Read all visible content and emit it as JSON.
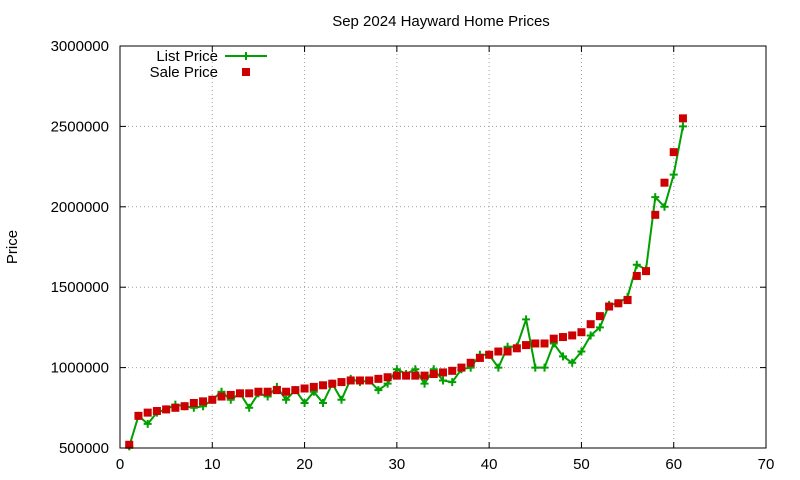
{
  "chart_data": {
    "type": "line",
    "title": "Sep 2024 Hayward Home Prices",
    "xlabel": "",
    "ylabel": "Price",
    "xlim": [
      0,
      70
    ],
    "ylim": [
      500000,
      3000000
    ],
    "x_ticks": [
      0,
      10,
      20,
      30,
      40,
      50,
      60,
      70
    ],
    "y_ticks": [
      500000,
      1000000,
      1500000,
      2000000,
      2500000,
      3000000
    ],
    "grid": true,
    "legend_position": "top-left",
    "series": [
      {
        "name": "List Price",
        "color": "#00a000",
        "marker": "plus",
        "line": true,
        "points": [
          [
            1,
            510000
          ],
          [
            2,
            700000
          ],
          [
            3,
            650000
          ],
          [
            4,
            720000
          ],
          [
            5,
            740000
          ],
          [
            6,
            770000
          ],
          [
            7,
            760000
          ],
          [
            8,
            750000
          ],
          [
            9,
            760000
          ],
          [
            10,
            800000
          ],
          [
            11,
            850000
          ],
          [
            12,
            800000
          ],
          [
            13,
            840000
          ],
          [
            14,
            750000
          ],
          [
            15,
            840000
          ],
          [
            16,
            820000
          ],
          [
            17,
            880000
          ],
          [
            18,
            800000
          ],
          [
            19,
            860000
          ],
          [
            20,
            780000
          ],
          [
            21,
            850000
          ],
          [
            22,
            780000
          ],
          [
            23,
            900000
          ],
          [
            24,
            800000
          ],
          [
            25,
            930000
          ],
          [
            26,
            910000
          ],
          [
            27,
            920000
          ],
          [
            28,
            860000
          ],
          [
            29,
            900000
          ],
          [
            30,
            990000
          ],
          [
            31,
            960000
          ],
          [
            32,
            990000
          ],
          [
            33,
            900000
          ],
          [
            34,
            990000
          ],
          [
            35,
            920000
          ],
          [
            36,
            910000
          ],
          [
            37,
            990000
          ],
          [
            38,
            1000000
          ],
          [
            39,
            1080000
          ],
          [
            40,
            1080000
          ],
          [
            41,
            1000000
          ],
          [
            42,
            1130000
          ],
          [
            43,
            1130000
          ],
          [
            44,
            1300000
          ],
          [
            45,
            1000000
          ],
          [
            46,
            1000000
          ],
          [
            47,
            1150000
          ],
          [
            48,
            1070000
          ],
          [
            49,
            1030000
          ],
          [
            50,
            1100000
          ],
          [
            51,
            1200000
          ],
          [
            52,
            1250000
          ],
          [
            53,
            1390000
          ],
          [
            54,
            1400000
          ],
          [
            55,
            1440000
          ],
          [
            56,
            1640000
          ],
          [
            57,
            1610000
          ],
          [
            58,
            2060000
          ],
          [
            59,
            2000000
          ],
          [
            60,
            2200000
          ],
          [
            61,
            2500000
          ]
        ]
      },
      {
        "name": "Sale Price",
        "color": "#cc0000",
        "marker": "square",
        "line": false,
        "points": [
          [
            1,
            520000
          ],
          [
            2,
            700000
          ],
          [
            3,
            720000
          ],
          [
            4,
            730000
          ],
          [
            5,
            740000
          ],
          [
            6,
            750000
          ],
          [
            7,
            760000
          ],
          [
            8,
            780000
          ],
          [
            9,
            790000
          ],
          [
            10,
            800000
          ],
          [
            11,
            820000
          ],
          [
            12,
            830000
          ],
          [
            13,
            840000
          ],
          [
            14,
            840000
          ],
          [
            15,
            850000
          ],
          [
            16,
            850000
          ],
          [
            17,
            860000
          ],
          [
            18,
            850000
          ],
          [
            19,
            860000
          ],
          [
            20,
            870000
          ],
          [
            21,
            880000
          ],
          [
            22,
            890000
          ],
          [
            23,
            900000
          ],
          [
            24,
            910000
          ],
          [
            25,
            920000
          ],
          [
            26,
            920000
          ],
          [
            27,
            920000
          ],
          [
            28,
            930000
          ],
          [
            29,
            940000
          ],
          [
            30,
            950000
          ],
          [
            31,
            950000
          ],
          [
            32,
            950000
          ],
          [
            33,
            950000
          ],
          [
            34,
            960000
          ],
          [
            35,
            970000
          ],
          [
            36,
            980000
          ],
          [
            37,
            1000000
          ],
          [
            38,
            1030000
          ],
          [
            39,
            1060000
          ],
          [
            40,
            1080000
          ],
          [
            41,
            1100000
          ],
          [
            42,
            1100000
          ],
          [
            43,
            1120000
          ],
          [
            44,
            1140000
          ],
          [
            45,
            1150000
          ],
          [
            46,
            1150000
          ],
          [
            47,
            1180000
          ],
          [
            48,
            1190000
          ],
          [
            49,
            1200000
          ],
          [
            50,
            1220000
          ],
          [
            51,
            1270000
          ],
          [
            52,
            1320000
          ],
          [
            53,
            1380000
          ],
          [
            54,
            1400000
          ],
          [
            55,
            1420000
          ],
          [
            56,
            1570000
          ],
          [
            57,
            1600000
          ],
          [
            58,
            1950000
          ],
          [
            59,
            2150000
          ],
          [
            60,
            2340000
          ],
          [
            61,
            2550000
          ]
        ]
      }
    ]
  }
}
